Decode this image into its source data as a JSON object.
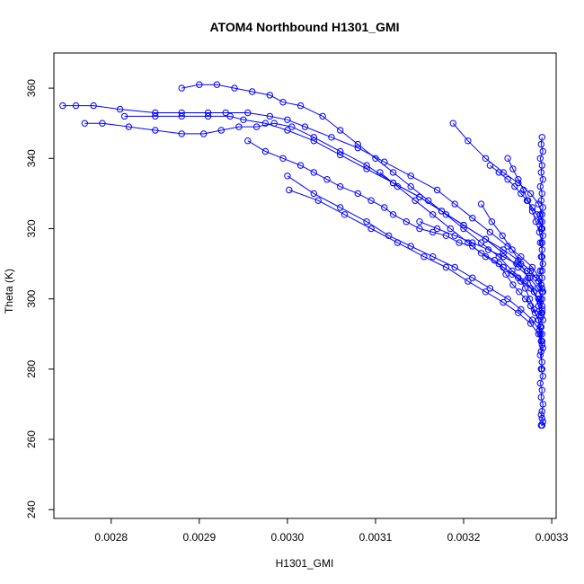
{
  "chart_data": {
    "type": "scatter",
    "title": "ATOM4 Northbound H1301_GMI",
    "xlabel": "H1301_GMI",
    "ylabel": "Theta (K)",
    "xlim": [
      0.002735,
      0.003305
    ],
    "ylim": [
      237.5,
      370
    ],
    "x_ticks": [
      0.0028,
      0.0029,
      0.003,
      0.0031,
      0.0032,
      0.0033
    ],
    "x_tick_labels": [
      "0.0028",
      "0.0029",
      "0.0030",
      "0.0031",
      "0.0032",
      "0.0033"
    ],
    "y_ticks": [
      240,
      260,
      280,
      300,
      320,
      340,
      360
    ],
    "y_tick_labels": [
      "240",
      "260",
      "280",
      "300",
      "320",
      "340",
      "360"
    ],
    "style": {
      "marker": "open-circle",
      "connected": true,
      "color": "#0000ff"
    },
    "series": [
      {
        "x": [
          0.002955,
          0.002975,
          0.002995,
          0.003015,
          0.00303,
          0.003045,
          0.00306,
          0.00308,
          0.003095,
          0.00311,
          0.00312,
          0.003135,
          0.00315,
          0.003165,
          0.00318,
          0.003195,
          0.00321,
          0.00322,
          0.003235,
          0.003245,
          0.003255,
          0.003265,
          0.00327,
          0.003275,
          0.00328,
          0.003285,
          0.003287,
          0.003288,
          0.003289
        ],
        "y": [
          345,
          342,
          340,
          338,
          336,
          334,
          332,
          330,
          328,
          326,
          324,
          322,
          320,
          319,
          318,
          316,
          315,
          313,
          311,
          309,
          307,
          305,
          303,
          300,
          297,
          294,
          290,
          285,
          280
        ]
      },
      {
        "x": [
          0.00288,
          0.0029,
          0.00292,
          0.00294,
          0.00296,
          0.00298,
          0.002995,
          0.003015,
          0.00304,
          0.00306,
          0.00308,
          0.0031,
          0.00312,
          0.00314,
          0.00316,
          0.00318,
          0.0032,
          0.00322,
          0.00324,
          0.003255,
          0.00327,
          0.00328,
          0.003287,
          0.003289
        ],
        "y": [
          360,
          361,
          361,
          360,
          359,
          358,
          356,
          355,
          352,
          348,
          344,
          340,
          336,
          332,
          328,
          324,
          320,
          316,
          312,
          308,
          305,
          302,
          299,
          296
        ]
      },
      {
        "x": [
          0.002745,
          0.00276,
          0.00278,
          0.00281,
          0.00285,
          0.00288,
          0.00291,
          0.00293,
          0.002955,
          0.00298,
          0.003,
          0.00302,
          0.00305,
          0.00308,
          0.00311,
          0.00314,
          0.00317,
          0.00319,
          0.00321,
          0.00323,
          0.00325,
          0.003265,
          0.003278,
          0.003286,
          0.003289
        ],
        "y": [
          355,
          355,
          355,
          354,
          353,
          353,
          353,
          353,
          353,
          352,
          351,
          349,
          346,
          343,
          339,
          335,
          331,
          327,
          323,
          319,
          315,
          312,
          309,
          306,
          303
        ]
      },
      {
        "x": [
          0.00277,
          0.00279,
          0.00282,
          0.00285,
          0.00288,
          0.002905,
          0.002925,
          0.002945,
          0.002965,
          0.002985,
          0.003005,
          0.00303,
          0.00306,
          0.00309,
          0.00312,
          0.00315,
          0.003175,
          0.0032,
          0.003225,
          0.003245,
          0.003262,
          0.003275,
          0.003284,
          0.003289
        ],
        "y": [
          350,
          350,
          349,
          348,
          347,
          347,
          348,
          349,
          349,
          350,
          349,
          346,
          342,
          338,
          333,
          329,
          325,
          321,
          317,
          313,
          309,
          306,
          303,
          300
        ]
      },
      {
        "x": [
          0.002815,
          0.00285,
          0.00288,
          0.00291,
          0.002935,
          0.00295,
          0.002975,
          0.003,
          0.00303,
          0.00306,
          0.00309,
          0.00312,
          0.00315,
          0.003175,
          0.0032,
          0.003225,
          0.003245,
          0.003262,
          0.003276,
          0.003285,
          0.003289
        ],
        "y": [
          352,
          352,
          352,
          352,
          352,
          351,
          350,
          348,
          345,
          341,
          337,
          333,
          329,
          325,
          321,
          317,
          314,
          311,
          308,
          305,
          302
        ]
      },
      {
        "x": [
          0.003,
          0.00303,
          0.00306,
          0.00309,
          0.003115,
          0.00314,
          0.003165,
          0.00319,
          0.00321,
          0.00323,
          0.00325,
          0.003265,
          0.003278,
          0.003286,
          0.003289
        ],
        "y": [
          335,
          330,
          326,
          322,
          318,
          315,
          312,
          309,
          306,
          303,
          300,
          297,
          294,
          291,
          288
        ]
      },
      {
        "x": [
          0.003002,
          0.003035,
          0.003065,
          0.003095,
          0.003125,
          0.003155,
          0.00318,
          0.003205,
          0.003225,
          0.003245,
          0.003262,
          0.003276,
          0.003285,
          0.003289
        ],
        "y": [
          331,
          328,
          324,
          320,
          316,
          312,
          309,
          305,
          302,
          299,
          296,
          293,
          290,
          287
        ]
      },
      {
        "x": [
          0.003188,
          0.003205,
          0.003225,
          0.003245,
          0.003262,
          0.003276,
          0.003285,
          0.003289,
          0.003289,
          0.003289,
          0.003289,
          0.003289
        ],
        "y": [
          350,
          345,
          340,
          336,
          333,
          330,
          327,
          324,
          320,
          316,
          312,
          308
        ]
      },
      {
        "x": [
          0.003105,
          0.003125,
          0.003145,
          0.003165,
          0.003185,
          0.003205,
          0.003225,
          0.003245,
          0.003262,
          0.003276,
          0.003285,
          0.003289
        ],
        "y": [
          336,
          332,
          328,
          324,
          320,
          316,
          312,
          309,
          306,
          303,
          300,
          297
        ]
      },
      {
        "x": [
          0.00315,
          0.00317,
          0.00319,
          0.00321,
          0.003228,
          0.003245,
          0.00326,
          0.003272,
          0.003282,
          0.003288
        ],
        "y": [
          322,
          320,
          318,
          316,
          314,
          312,
          310,
          308,
          306,
          304
        ]
      },
      {
        "x": [
          0.00323,
          0.00324,
          0.00325,
          0.003258,
          0.003265,
          0.003272,
          0.003278,
          0.003283,
          0.003287,
          0.003289
        ],
        "y": [
          338,
          336,
          334,
          332,
          330,
          328,
          326,
          324,
          322,
          320
        ]
      },
      {
        "x": [
          0.00325,
          0.003256,
          0.003262,
          0.003268,
          0.003273,
          0.003278,
          0.003282,
          0.003286,
          0.003289
        ],
        "y": [
          340,
          337,
          334,
          331,
          328,
          325,
          322,
          319,
          316
        ]
      },
      {
        "x": [
          0.00322,
          0.003232,
          0.003244,
          0.003255,
          0.003265,
          0.003273,
          0.00328,
          0.003285,
          0.003288
        ],
        "y": [
          327,
          322,
          318,
          314,
          310,
          306,
          302,
          298,
          295
        ]
      },
      {
        "x": [
          0.00324,
          0.003248,
          0.003256,
          0.003263,
          0.00327,
          0.003276,
          0.003281,
          0.003285,
          0.003288
        ],
        "y": [
          310,
          307,
          304,
          302,
          300,
          298,
          296,
          294,
          292
        ]
      },
      {
        "x": [
          0.003289,
          0.003288,
          0.00329,
          0.003287,
          0.003289,
          0.003288,
          0.00329,
          0.003287,
          0.003289,
          0.003288,
          0.00329,
          0.003287,
          0.003289,
          0.003288,
          0.00329,
          0.003287,
          0.003289,
          0.003288,
          0.00329,
          0.003287,
          0.003289,
          0.003288,
          0.00329,
          0.003287,
          0.003289,
          0.003288,
          0.00329,
          0.003287,
          0.003289,
          0.003288,
          0.00329,
          0.003287,
          0.003289,
          0.003288,
          0.00329,
          0.003287,
          0.003289,
          0.003288,
          0.00329,
          0.003289,
          0.003288,
          0.003289,
          0.00329,
          0.003289,
          0.003288
        ],
        "y": [
          346,
          344,
          342,
          340,
          338,
          336,
          334,
          332,
          330,
          328,
          326,
          324,
          322,
          320,
          318,
          316,
          314,
          312,
          310,
          308,
          306,
          304,
          302,
          300,
          298,
          296,
          294,
          292,
          290,
          288,
          286,
          284,
          282,
          280,
          278,
          276,
          274,
          272,
          270,
          268,
          267,
          266,
          265,
          264,
          264
        ]
      }
    ]
  }
}
